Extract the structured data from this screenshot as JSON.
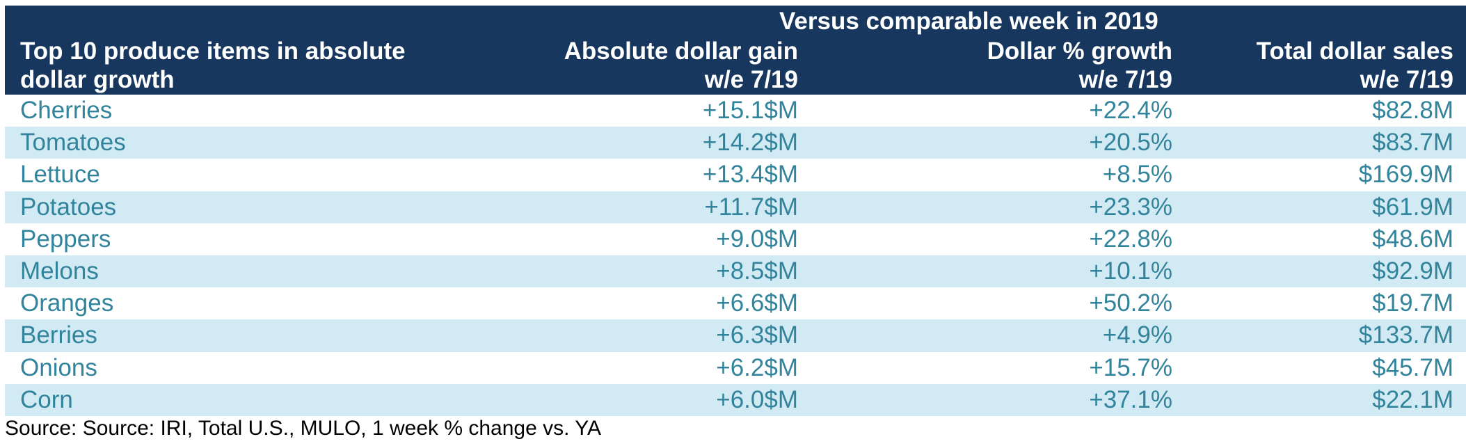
{
  "chart_data": {
    "type": "table",
    "group_header": "Versus comparable week in 2019",
    "columns": [
      "Top 10 produce items in absolute dollar growth",
      "Absolute dollar gain w/e 7/19",
      "Dollar % growth w/e 7/19",
      "Total dollar sales w/e 7/19"
    ],
    "rows": [
      [
        "Cherries",
        "+15.1$M",
        "+22.4%",
        "$82.8M"
      ],
      [
        "Tomatoes",
        "+14.2$M",
        "+20.5%",
        "$83.7M"
      ],
      [
        "Lettuce",
        "+13.4$M",
        "+8.5%",
        "$169.9M"
      ],
      [
        "Potatoes",
        "+11.7$M",
        "+23.3%",
        "$61.9M"
      ],
      [
        "Peppers",
        "+9.0$M",
        "+22.8%",
        "$48.6M"
      ],
      [
        "Melons",
        "+8.5$M",
        "+10.1%",
        "$92.9M"
      ],
      [
        "Oranges",
        "+6.6$M",
        "+50.2%",
        "$19.7M"
      ],
      [
        "Berries",
        "+6.3$M",
        "+4.9%",
        "$133.7M"
      ],
      [
        "Onions",
        "+6.2$M",
        "+15.7%",
        "$45.7M"
      ],
      [
        "Corn",
        "+6.0$M",
        "+37.1%",
        "$22.1M"
      ]
    ],
    "source": "Source: Source: IRI, Total U.S., MULO, 1 week % change vs. YA"
  },
  "colors": {
    "header_background": "#17375e",
    "header_text": "#ffffff",
    "row_text": "#31849b",
    "row_alt_background": "#d2eaf3",
    "row_background": "#ffffff"
  }
}
